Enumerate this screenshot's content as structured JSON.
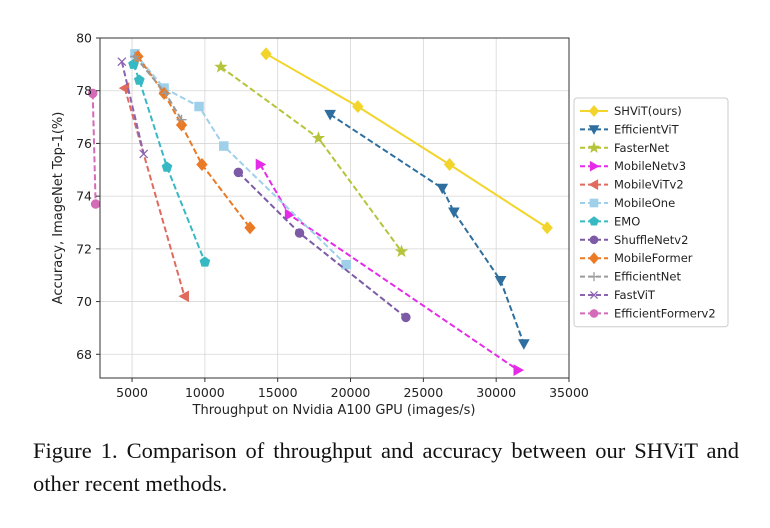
{
  "caption": "Figure 1. Comparison of throughput and accuracy between our SHViT and other recent methods.",
  "chart_data": {
    "type": "line",
    "title": "",
    "xlabel": "Throughput on Nvidia A100 GPU (images/s)",
    "ylabel": "Accuracy, ImageNet Top-1(%)",
    "xlim": [
      2800,
      35000
    ],
    "ylim": [
      67.1,
      80
    ],
    "xticks": [
      5000,
      10000,
      15000,
      20000,
      25000,
      30000,
      35000
    ],
    "yticks": [
      68,
      70,
      72,
      74,
      76,
      78,
      80
    ],
    "grid": true,
    "legend_position": "right",
    "series": [
      {
        "name": "SHViT(ours)",
        "color": "#f2d42a",
        "marker": "diamond",
        "dashed": false,
        "x": [
          14200,
          20500,
          26800,
          33500
        ],
        "y": [
          79.4,
          77.4,
          75.2,
          72.8
        ]
      },
      {
        "name": "EfficientViT",
        "color": "#2f6f9f",
        "marker": "tri_down",
        "dashed": true,
        "x": [
          18600,
          26300,
          27100,
          30300,
          31900
        ],
        "y": [
          77.1,
          74.3,
          73.4,
          70.8,
          68.4
        ]
      },
      {
        "name": "FasterNet",
        "color": "#b5c43a",
        "marker": "star",
        "dashed": true,
        "x": [
          11100,
          17800,
          23500
        ],
        "y": [
          78.9,
          76.2,
          71.9
        ]
      },
      {
        "name": "MobileNetv3",
        "color": "#e52ae8",
        "marker": "tri_right",
        "dashed": true,
        "x": [
          13800,
          15800,
          31500
        ],
        "y": [
          75.2,
          73.3,
          67.4
        ]
      },
      {
        "name": "MobileViTv2",
        "color": "#e06a5e",
        "marker": "tri_left",
        "dashed": true,
        "x": [
          4500,
          8600
        ],
        "y": [
          78.1,
          70.2
        ]
      },
      {
        "name": "MobileOne",
        "color": "#9fd0ea",
        "marker": "square",
        "dashed": true,
        "x": [
          5200,
          7200,
          9600,
          11300,
          19700
        ],
        "y": [
          79.4,
          78.1,
          77.4,
          75.9,
          71.4
        ]
      },
      {
        "name": "EMO",
        "color": "#37b9c4",
        "marker": "pentagon",
        "dashed": true,
        "x": [
          5100,
          5500,
          7400,
          10000
        ],
        "y": [
          79.0,
          78.4,
          75.1,
          71.5
        ]
      },
      {
        "name": "ShuffleNetv2",
        "color": "#7d5aa6",
        "marker": "circle",
        "dashed": true,
        "x": [
          12300,
          16500,
          23800
        ],
        "y": [
          74.9,
          72.6,
          69.4
        ]
      },
      {
        "name": "MobileFormer",
        "color": "#ea7a26",
        "marker": "diamond",
        "dashed": true,
        "x": [
          5400,
          7200,
          8400,
          9800,
          13100
        ],
        "y": [
          79.3,
          77.9,
          76.7,
          75.2,
          72.8
        ]
      },
      {
        "name": "EfficientNet",
        "color": "#9a9a9a",
        "marker": "plus",
        "dashed": true,
        "x": [
          5200,
          7300,
          8400
        ],
        "y": [
          79.3,
          77.9,
          76.9
        ]
      },
      {
        "name": "FastViT",
        "color": "#8c63b0",
        "marker": "x",
        "dashed": true,
        "x": [
          4300,
          5800
        ],
        "y": [
          79.1,
          75.6
        ]
      },
      {
        "name": "EfficientFormerv2",
        "color": "#d46bb8",
        "marker": "circle",
        "dashed": true,
        "x": [
          2300,
          2500
        ],
        "y": [
          77.9,
          73.7
        ]
      }
    ]
  }
}
